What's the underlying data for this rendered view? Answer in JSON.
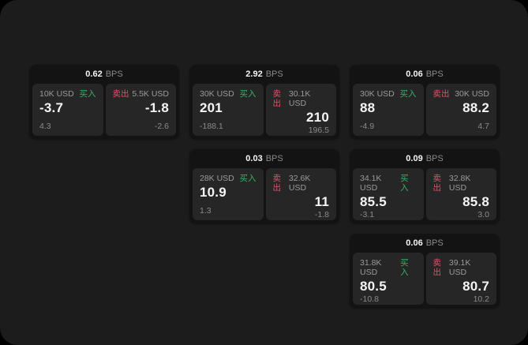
{
  "theme": {
    "bg": "#000000",
    "surface": "#1c1c1c",
    "card_bg": "#131313",
    "panel_bg": "#262626",
    "text_primary": "#f5f5f5",
    "text_secondary": "#9a9a9a",
    "text_muted": "#8a8a8a",
    "buy_color": "#3dae68",
    "sell_color": "#d5566a"
  },
  "labels": {
    "buy": "买入",
    "sell": "卖出",
    "bps_unit": "BPS"
  },
  "cards": [
    {
      "col": 1,
      "row": 1,
      "bps": "0.62",
      "buy": {
        "size": "10K USD",
        "price": "-3.7",
        "sub": "4.3"
      },
      "sell": {
        "size": "5.5K USD",
        "price": "-1.8",
        "sub": "-2.6"
      }
    },
    {
      "col": 2,
      "row": 1,
      "bps": "2.92",
      "buy": {
        "size": "30K USD",
        "price": "201",
        "sub": "-188.1"
      },
      "sell": {
        "size": "30.1K USD",
        "price": "210",
        "sub": "196.5"
      }
    },
    {
      "col": 3,
      "row": 1,
      "bps": "0.06",
      "buy": {
        "size": "30K USD",
        "price": "88",
        "sub": "-4.9"
      },
      "sell": {
        "size": "30K USD",
        "price": "88.2",
        "sub": "4.7"
      }
    },
    {
      "col": 2,
      "row": 2,
      "bps": "0.03",
      "buy": {
        "size": "28K USD",
        "price": "10.9",
        "sub": "1.3"
      },
      "sell": {
        "size": "32.6K USD",
        "price": "11",
        "sub": "-1.8"
      }
    },
    {
      "col": 3,
      "row": 2,
      "bps": "0.09",
      "buy": {
        "size": "34.1K USD",
        "price": "85.5",
        "sub": "-3.1"
      },
      "sell": {
        "size": "32.8K USD",
        "price": "85.8",
        "sub": "3.0"
      }
    },
    {
      "col": 3,
      "row": 3,
      "bps": "0.06",
      "buy": {
        "size": "31.8K USD",
        "price": "80.5",
        "sub": "-10.8"
      },
      "sell": {
        "size": "39.1K USD",
        "price": "80.7",
        "sub": "10.2"
      }
    }
  ]
}
